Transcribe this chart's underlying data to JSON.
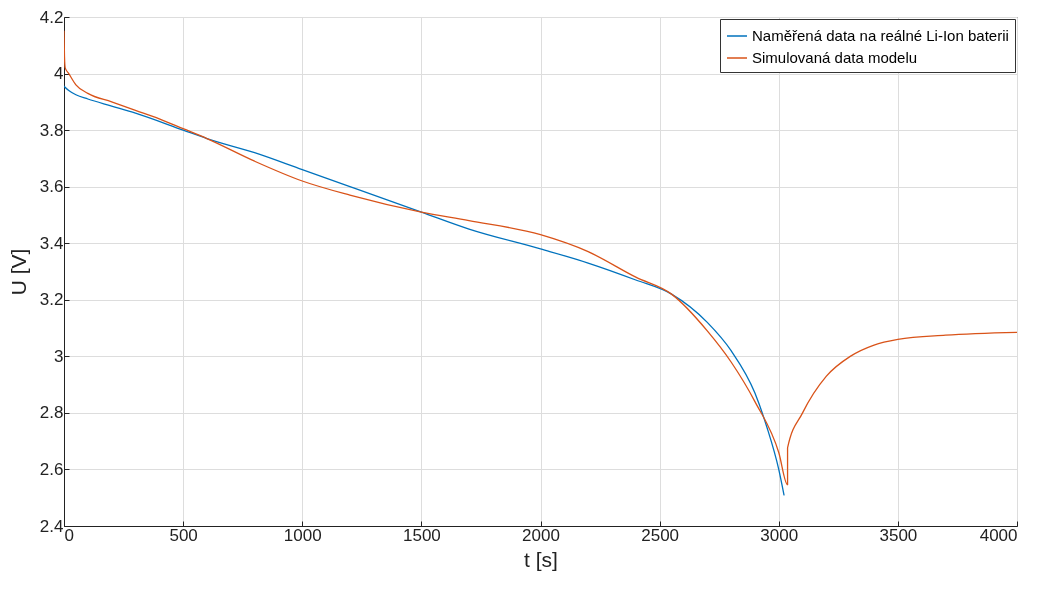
{
  "chart_data": {
    "type": "line",
    "xlabel": "t [s]",
    "ylabel": "U [V]",
    "xlim": [
      0,
      4000
    ],
    "ylim": [
      2.4,
      4.2
    ],
    "xticks": [
      0,
      500,
      1000,
      1500,
      2000,
      2500,
      3000,
      3500,
      4000
    ],
    "yticks": [
      2.4,
      2.6,
      2.8,
      3,
      3.2,
      3.4,
      3.6,
      3.8,
      4,
      4.2
    ],
    "grid": true,
    "legend": "top right",
    "marker": "none",
    "line_style": "solid",
    "series": [
      {
        "name": "Naměřená data na reálné Li-Ion baterii",
        "color": "#0072bd",
        "x": [
          0,
          20,
          50,
          100,
          200,
          300,
          500,
          600,
          800,
          1000,
          1200,
          1500,
          1700,
          2000,
          2200,
          2400,
          2550,
          2700,
          2800,
          2900,
          2950,
          3000,
          3022
        ],
        "values": [
          3.955,
          3.94,
          3.925,
          3.91,
          3.885,
          3.86,
          3.8,
          3.77,
          3.72,
          3.66,
          3.6,
          3.51,
          3.45,
          3.38,
          3.33,
          3.27,
          3.22,
          3.12,
          3.02,
          2.87,
          2.75,
          2.6,
          2.51
        ]
      },
      {
        "name": "Simulovaná data modelu",
        "color": "#d95319",
        "x": [
          0,
          2,
          5,
          20,
          50,
          100,
          200,
          300,
          400,
          500,
          600,
          800,
          1000,
          1200,
          1500,
          1700,
          2000,
          2200,
          2400,
          2550,
          2700,
          2800,
          2900,
          3000,
          3037,
          3037,
          3100,
          3200,
          3300,
          3400,
          3500,
          3700,
          4000
        ],
        "values": [
          4.15,
          4.06,
          4.02,
          4.0,
          3.96,
          3.93,
          3.9,
          3.87,
          3.84,
          3.805,
          3.77,
          3.69,
          3.62,
          3.57,
          3.51,
          3.48,
          3.43,
          3.37,
          3.28,
          3.22,
          3.09,
          2.98,
          2.84,
          2.66,
          2.546,
          2.676,
          2.8,
          2.93,
          3.0,
          3.04,
          3.06,
          3.075,
          3.085
        ]
      }
    ]
  }
}
